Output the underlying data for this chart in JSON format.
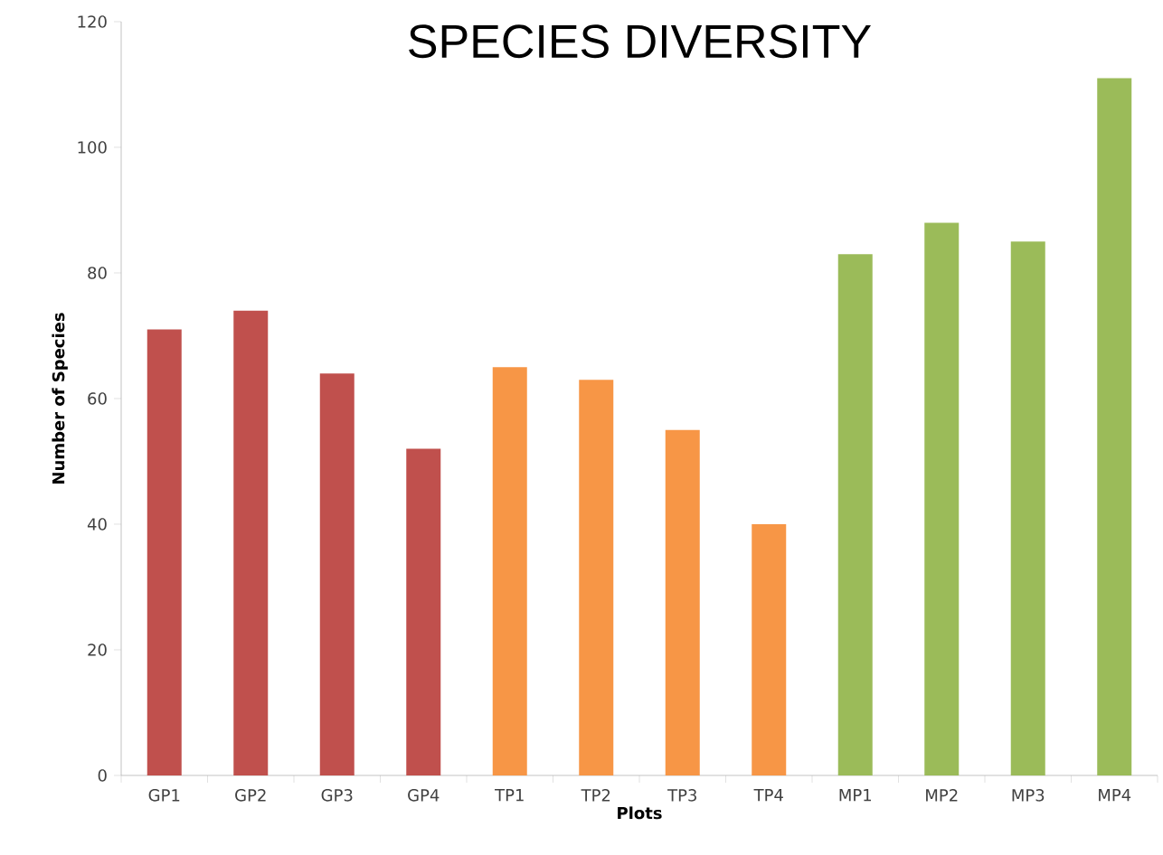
{
  "chart_data": {
    "type": "bar",
    "title": "SPECIES DIVERSITY",
    "xlabel": "Plots",
    "ylabel": "Number of Species",
    "categories": [
      "GP1",
      "GP2",
      "GP3",
      "GP4",
      "TP1",
      "TP2",
      "TP3",
      "TP4",
      "MP1",
      "MP2",
      "MP3",
      "MP4"
    ],
    "values": [
      71,
      74,
      64,
      52,
      65,
      63,
      55,
      40,
      83,
      88,
      85,
      111
    ],
    "colors": [
      "#c0504d",
      "#c0504d",
      "#c0504d",
      "#c0504d",
      "#f79646",
      "#f79646",
      "#f79646",
      "#f79646",
      "#9bbb59",
      "#9bbb59",
      "#9bbb59",
      "#9bbb59"
    ],
    "ylim": [
      0,
      120
    ],
    "yticks": [
      0,
      20,
      40,
      60,
      80,
      100,
      120
    ],
    "grid": false
  }
}
